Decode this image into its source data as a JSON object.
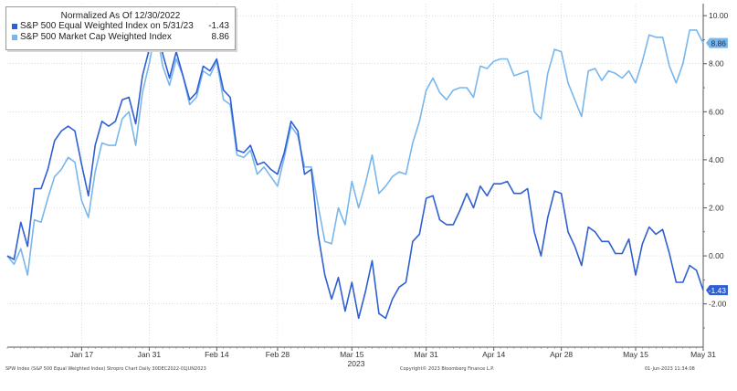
{
  "legend": {
    "title": "Normalized As Of 12/30/2022",
    "series": [
      {
        "label": "S&P 500 Equal Weighted Index on 5/31/23",
        "value": "-1.43",
        "color": "#2f5fd2"
      },
      {
        "label": "S&P 500 Market Cap Weighted Index",
        "value": "8.86",
        "color": "#79b6ec"
      }
    ]
  },
  "footer": {
    "left": "SPW Index (S&P 500 Equal Weighted Index) Stropro Chart  Daily 30DEC2022-01JUN2023",
    "center": "Copyright© 2023 Bloomberg Finance L.P.",
    "right": "01-Jun-2023 11:34:08"
  },
  "chart_data": {
    "type": "line",
    "x_tick_labels": [
      "Jan 17",
      "Jan 31",
      "Feb 14",
      "Feb 28",
      "Mar 15",
      "Mar 31",
      "Apr 14",
      "Apr 28",
      "May 15",
      "May 31"
    ],
    "x_year_label": "2023",
    "ylim": [
      -3.8,
      10.5
    ],
    "y_ticks": [
      "10.00",
      "8.00",
      "6.00",
      "4.00",
      "2.00",
      "0.00",
      "-2.00"
    ],
    "grid": true,
    "legend_position": "top-left",
    "last_value_labels": [
      "8.86",
      "-1.43"
    ],
    "series": [
      {
        "name": "S&P 500 Equal Weighted Index on 5/31/23",
        "color": "#2f5fd2",
        "values": [
          0.0,
          -0.15,
          1.4,
          0.4,
          2.8,
          2.8,
          3.6,
          4.8,
          5.2,
          5.4,
          5.2,
          3.8,
          2.5,
          4.6,
          5.6,
          5.4,
          5.6,
          6.5,
          6.6,
          5.5,
          7.5,
          8.6,
          9.7,
          8.4,
          7.4,
          8.5,
          7.5,
          6.5,
          6.8,
          7.9,
          7.7,
          8.2,
          6.9,
          6.6,
          4.4,
          4.3,
          4.6,
          3.8,
          3.9,
          3.6,
          3.4,
          4.3,
          5.6,
          5.2,
          3.4,
          3.6,
          0.9,
          -0.8,
          -1.8,
          -0.9,
          -2.3,
          -1.1,
          -2.6,
          -1.5,
          -0.2,
          -2.4,
          -2.6,
          -1.8,
          -1.3,
          -1.1,
          0.6,
          0.9,
          2.4,
          2.5,
          1.5,
          1.3,
          1.3,
          1.9,
          2.6,
          2.0,
          2.9,
          2.5,
          3.0,
          3.0,
          3.1,
          2.6,
          2.6,
          2.8,
          1.0,
          0.0,
          1.6,
          2.7,
          2.6,
          1.0,
          0.4,
          -0.4,
          1.2,
          1.0,
          0.6,
          0.6,
          0.1,
          0.1,
          0.7,
          -0.8,
          0.5,
          1.2,
          0.9,
          1.1,
          0.1,
          -1.1,
          -1.1,
          -0.4,
          -0.6,
          -1.43
        ]
      },
      {
        "name": "S&P 500 Market Cap Weighted Index",
        "color": "#79b6ec",
        "values": [
          0.0,
          -0.35,
          0.3,
          -0.8,
          1.5,
          1.4,
          2.4,
          3.3,
          3.6,
          4.1,
          3.9,
          2.3,
          1.6,
          3.5,
          4.7,
          4.6,
          4.6,
          5.7,
          6.0,
          4.6,
          6.8,
          8.0,
          9.5,
          7.9,
          7.1,
          8.2,
          7.5,
          6.3,
          6.6,
          7.7,
          7.5,
          8.1,
          6.5,
          6.3,
          4.2,
          4.1,
          4.4,
          3.4,
          3.7,
          3.3,
          2.9,
          4.1,
          5.4,
          5.0,
          3.7,
          3.7,
          2.1,
          0.6,
          0.5,
          2.0,
          1.3,
          3.1,
          2.0,
          3.0,
          4.2,
          2.6,
          2.9,
          3.3,
          3.5,
          3.4,
          4.7,
          5.6,
          6.9,
          7.4,
          6.8,
          6.5,
          6.9,
          7.0,
          7.0,
          6.6,
          7.9,
          7.8,
          8.1,
          8.2,
          8.2,
          7.5,
          7.6,
          7.7,
          6.0,
          5.7,
          7.6,
          8.6,
          8.5,
          7.2,
          6.5,
          5.8,
          7.7,
          7.8,
          7.3,
          7.7,
          7.6,
          7.4,
          7.7,
          7.2,
          8.1,
          9.2,
          9.1,
          9.1,
          7.9,
          7.2,
          8.0,
          9.4,
          9.4,
          8.86
        ]
      }
    ]
  }
}
